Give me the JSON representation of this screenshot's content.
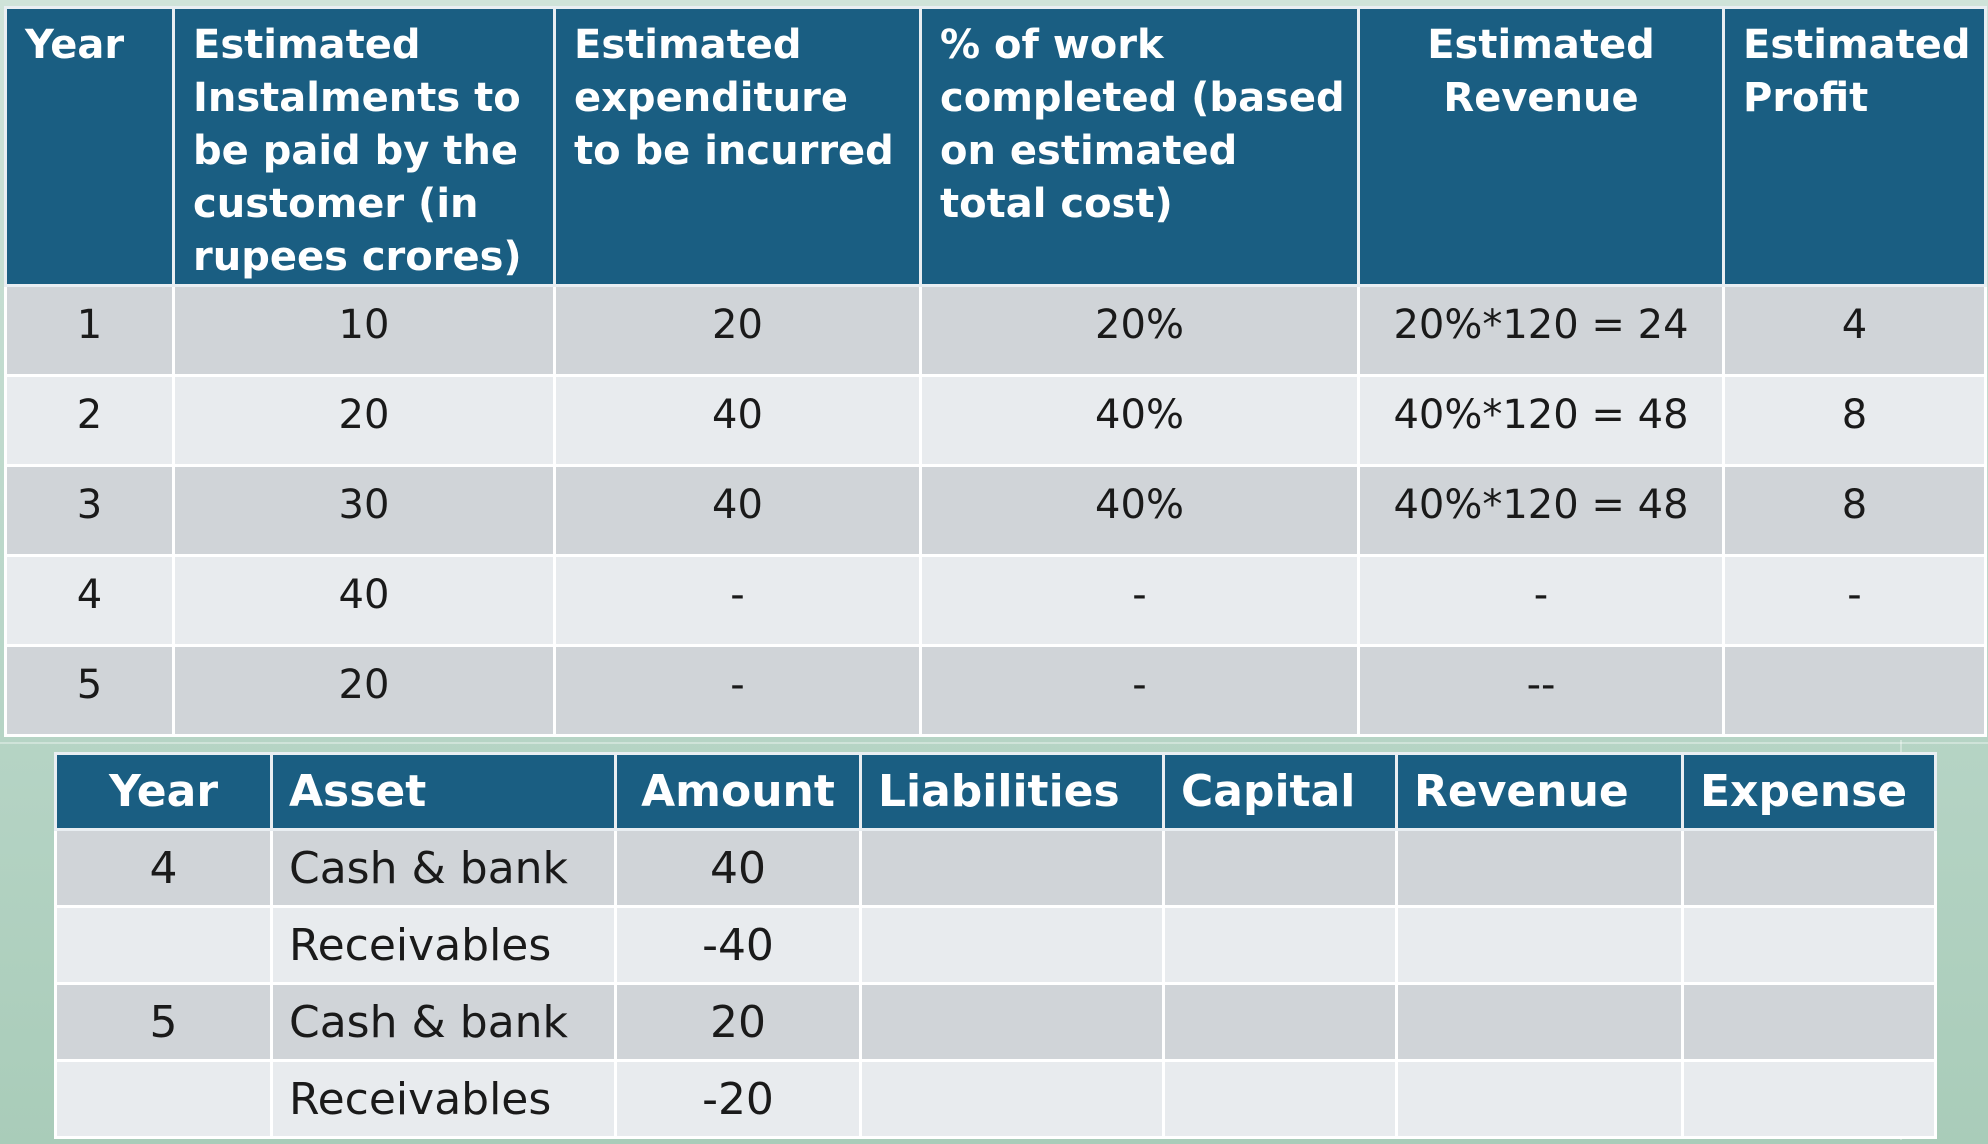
{
  "top_table": {
    "headers": [
      "Year",
      "Estimated Instalments to be  paid by the customer (in rupees crores)",
      "Estimated expenditure to be incurred",
      "% of work completed (based on estimated total cost)",
      "Estimated Revenue",
      "Estimated Profit"
    ],
    "rows": [
      [
        "1",
        "10",
        "20",
        "20%",
        "20%*120 = 24",
        "4"
      ],
      [
        "2",
        "20",
        "40",
        "40%",
        "40%*120 = 48",
        "8"
      ],
      [
        "3",
        "30",
        "40",
        "40%",
        "40%*120 = 48",
        "8"
      ],
      [
        "4",
        "40",
        "-",
        "-",
        "-",
        "-"
      ],
      [
        "5",
        "20",
        "-",
        "-",
        "--",
        ""
      ]
    ]
  },
  "bottom_table": {
    "headers": [
      "Year",
      "Asset",
      "Amount",
      "Liabilities",
      "Capital",
      "Revenue",
      "Expense"
    ],
    "rows": [
      [
        "4",
        "Cash & bank",
        "40",
        "",
        "",
        "",
        ""
      ],
      [
        "",
        "Receivables",
        "-40",
        "",
        "",
        "",
        ""
      ],
      [
        "5",
        "Cash & bank",
        "20",
        "",
        "",
        "",
        ""
      ],
      [
        "",
        "Receivables",
        "-20",
        "",
        "",
        "",
        ""
      ]
    ]
  }
}
